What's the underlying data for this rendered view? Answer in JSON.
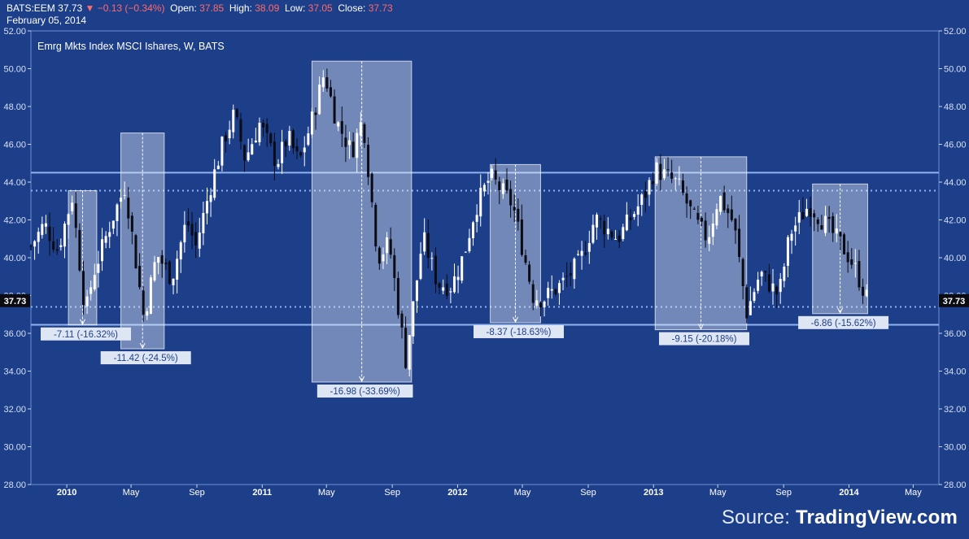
{
  "header": {
    "symbol": "BATS:EEM",
    "last": "37.73",
    "change": "▼ −0.13 (−0.34%)",
    "open_label": "Open:",
    "open": "37.85",
    "high_label": "High:",
    "high": "38.09",
    "low_label": "Low:",
    "low": "37.05",
    "close_label": "Close:",
    "close": "37.73",
    "date": "February 05, 2014"
  },
  "source": {
    "prefix": "Source: ",
    "brand": "TradingView.com"
  },
  "colors": {
    "background": "#1d3f8a",
    "up_candle": "#ffffff",
    "down_candle": "#0b0b14",
    "level_line": "#8fb3f0",
    "box_fill": "#e8eef8",
    "price_tag_bg": "#0b0b14"
  },
  "chart_data": {
    "type": "candlestick",
    "title": "Emrg Mkts Index MSCI Ishares, W, BATS",
    "ylim": [
      28,
      52
    ],
    "yticks": [
      28,
      30,
      32,
      34,
      36,
      38,
      40,
      42,
      44,
      46,
      48,
      50,
      52
    ],
    "ytick_labels": [
      "28.00",
      "30.00",
      "32.00",
      "34.00",
      "36.00",
      "38.00",
      "40.00",
      "42.00",
      "44.00",
      "46.00",
      "48.00",
      "50.00",
      "52.00"
    ],
    "x_ticks": [
      {
        "label": "2010",
        "date": "2010-01-01",
        "bold": true
      },
      {
        "label": "May",
        "date": "2010-05-01",
        "bold": false
      },
      {
        "label": "Sep",
        "date": "2010-09-01",
        "bold": false
      },
      {
        "label": "2011",
        "date": "2011-01-01",
        "bold": true
      },
      {
        "label": "May",
        "date": "2011-05-01",
        "bold": false
      },
      {
        "label": "Sep",
        "date": "2011-09-01",
        "bold": false
      },
      {
        "label": "2012",
        "date": "2012-01-01",
        "bold": true
      },
      {
        "label": "May",
        "date": "2012-05-01",
        "bold": false
      },
      {
        "label": "Sep",
        "date": "2012-09-01",
        "bold": false
      },
      {
        "label": "2013",
        "date": "2013-01-01",
        "bold": true
      },
      {
        "label": "May",
        "date": "2013-05-01",
        "bold": false
      },
      {
        "label": "Sep",
        "date": "2013-09-01",
        "bold": false
      },
      {
        "label": "2014",
        "date": "2014-01-01",
        "bold": true
      },
      {
        "label": "May",
        "date": "2014-05-01",
        "bold": false
      }
    ],
    "x_range": [
      "2009-10-26",
      "2014-06-18"
    ],
    "last_price": 37.73,
    "last_price_label": "37.73",
    "levels": [
      {
        "value": 44.5,
        "style": "solid"
      },
      {
        "value": 43.55,
        "style": "dotted"
      },
      {
        "value": 37.4,
        "style": "dotted"
      },
      {
        "value": 36.45,
        "style": "solid"
      }
    ],
    "drawdowns": [
      {
        "start": "2010-01-04",
        "end": "2010-02-26",
        "high": 43.55,
        "low": 36.44,
        "label": "-7.11 (-16.32%)"
      },
      {
        "start": "2010-04-12",
        "end": "2010-07-02",
        "high": 46.6,
        "low": 35.18,
        "label": "-11.42 (-24.5%)"
      },
      {
        "start": "2011-04-04",
        "end": "2011-10-07",
        "high": 50.4,
        "low": 33.42,
        "label": "-16.98 (-33.69%)"
      },
      {
        "start": "2012-03-02",
        "end": "2012-06-04",
        "high": 44.93,
        "low": 36.56,
        "label": "-8.37 (-18.63%)"
      },
      {
        "start": "2013-01-04",
        "end": "2013-06-24",
        "high": 45.34,
        "low": 36.19,
        "label": "-9.15 (-20.18%)"
      },
      {
        "start": "2013-10-25",
        "end": "2014-02-05",
        "high": 43.9,
        "low": 37.04,
        "label": "-6.86 (-15.62%)"
      }
    ],
    "anchors": [
      [
        "2009-10-26",
        40.6
      ],
      [
        "2009-11-20",
        41.8
      ],
      [
        "2009-12-15",
        40.4
      ],
      [
        "2010-01-11",
        43.2
      ],
      [
        "2010-02-05",
        37.0
      ],
      [
        "2010-02-19",
        39.1
      ],
      [
        "2010-03-26",
        42.0
      ],
      [
        "2010-04-20",
        43.8
      ],
      [
        "2010-05-25",
        36.8
      ],
      [
        "2010-06-18",
        40.2
      ],
      [
        "2010-07-16",
        38.9
      ],
      [
        "2010-08-13",
        42.0
      ],
      [
        "2010-08-30",
        40.6
      ],
      [
        "2010-09-27",
        43.8
      ],
      [
        "2010-10-22",
        46.3
      ],
      [
        "2010-11-10",
        47.6
      ],
      [
        "2010-11-30",
        45.2
      ],
      [
        "2010-12-27",
        47.1
      ],
      [
        "2011-01-28",
        45.0
      ],
      [
        "2011-02-18",
        46.4
      ],
      [
        "2011-03-11",
        45.0
      ],
      [
        "2011-04-06",
        47.5
      ],
      [
        "2011-04-27",
        49.8
      ],
      [
        "2011-05-20",
        47.2
      ],
      [
        "2011-06-17",
        45.6
      ],
      [
        "2011-07-08",
        47.4
      ],
      [
        "2011-08-05",
        40.0
      ],
      [
        "2011-08-26",
        40.8
      ],
      [
        "2011-09-26",
        34.6
      ],
      [
        "2011-10-28",
        41.1
      ],
      [
        "2011-11-25",
        38.6
      ],
      [
        "2011-12-21",
        38.5
      ],
      [
        "2012-01-13",
        40.2
      ],
      [
        "2012-02-03",
        42.6
      ],
      [
        "2012-03-02",
        44.3
      ],
      [
        "2012-04-13",
        42.8
      ],
      [
        "2012-05-21",
        38.0
      ],
      [
        "2012-06-08",
        37.8
      ],
      [
        "2012-07-13",
        38.6
      ],
      [
        "2012-08-17",
        39.8
      ],
      [
        "2012-09-14",
        42.1
      ],
      [
        "2012-10-26",
        41.0
      ],
      [
        "2012-12-14",
        43.2
      ],
      [
        "2013-01-04",
        44.7
      ],
      [
        "2013-02-15",
        43.9
      ],
      [
        "2013-03-22",
        41.8
      ],
      [
        "2013-04-12",
        41.0
      ],
      [
        "2013-05-03",
        43.3
      ],
      [
        "2013-05-31",
        41.8
      ],
      [
        "2013-06-24",
        37.1
      ],
      [
        "2013-07-19",
        39.2
      ],
      [
        "2013-08-23",
        38.0
      ],
      [
        "2013-09-13",
        41.3
      ],
      [
        "2013-10-18",
        42.8
      ],
      [
        "2013-11-15",
        41.9
      ],
      [
        "2013-12-20",
        40.6
      ],
      [
        "2014-01-10",
        39.6
      ],
      [
        "2014-02-05",
        37.73
      ]
    ]
  }
}
